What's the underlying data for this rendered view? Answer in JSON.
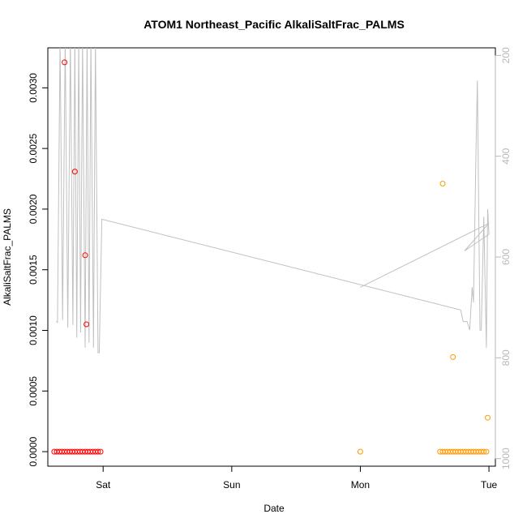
{
  "chart_data": {
    "type": "scatter",
    "title": "ATOM1 Northeast_Pacific AlkaliSaltFrac_PALMS",
    "xlabel": "Date",
    "ylabel": "AlkaliSaltFrac_PALMS",
    "x_ticks": [
      {
        "label": "Sat",
        "value": 1.0
      },
      {
        "label": "Sun",
        "value": 2.0
      },
      {
        "label": "Mon",
        "value": 3.0
      },
      {
        "label": "Tue",
        "value": 4.0
      }
    ],
    "xlim": [
      0.57,
      4.05
    ],
    "ylim": [
      -0.00012,
      0.00333
    ],
    "y_ticks": [
      "0.0000",
      "0.0005",
      "0.0010",
      "0.0015",
      "0.0020",
      "0.0025",
      "0.0030"
    ],
    "y_tick_values": [
      0.0,
      0.0005,
      0.001,
      0.0015,
      0.002,
      0.0025,
      0.003
    ],
    "y2_ticks": [
      "200",
      "400",
      "600",
      "800",
      "1000"
    ],
    "y2_tick_values": [
      200,
      400,
      600,
      800,
      1000
    ],
    "y2lim": [
      1015,
      185
    ],
    "colors": {
      "series_red": "#ff0000",
      "series_orange": "#ff9900",
      "altitude_line": "#c0c0c0",
      "right_axis": "#b8b8b8"
    },
    "series": [
      {
        "values_red": [
          [
            0.7,
            0.00321
          ],
          [
            0.78,
            0.00231
          ],
          [
            0.86,
            0.00162
          ],
          [
            0.87,
            0.00105
          ],
          [
            0.62,
            0.0
          ],
          [
            0.64,
            0.0
          ],
          [
            0.66,
            0.0
          ],
          [
            0.68,
            0.0
          ],
          [
            0.7,
            0.0
          ],
          [
            0.72,
            0.0
          ],
          [
            0.74,
            0.0
          ],
          [
            0.76,
            0.0
          ],
          [
            0.78,
            0.0
          ],
          [
            0.8,
            0.0
          ],
          [
            0.82,
            0.0
          ],
          [
            0.84,
            0.0
          ],
          [
            0.86,
            0.0
          ],
          [
            0.88,
            0.0
          ],
          [
            0.9,
            0.0
          ],
          [
            0.92,
            0.0
          ],
          [
            0.94,
            0.0
          ],
          [
            0.96,
            0.0
          ],
          [
            0.98,
            0.0
          ]
        ],
        "values_orange": [
          [
            3.0,
            0.0
          ],
          [
            3.64,
            0.00221
          ],
          [
            3.72,
            0.00078
          ],
          [
            3.99,
            0.00028
          ],
          [
            3.62,
            0.0
          ],
          [
            3.64,
            0.0
          ],
          [
            3.66,
            0.0
          ],
          [
            3.68,
            0.0
          ],
          [
            3.7,
            0.0
          ],
          [
            3.72,
            0.0
          ],
          [
            3.74,
            0.0
          ],
          [
            3.76,
            0.0
          ],
          [
            3.78,
            0.0
          ],
          [
            3.8,
            0.0
          ],
          [
            3.82,
            0.0
          ],
          [
            3.84,
            0.0
          ],
          [
            3.86,
            0.0
          ],
          [
            3.88,
            0.0
          ],
          [
            3.9,
            0.0
          ],
          [
            3.92,
            0.0
          ],
          [
            3.94,
            0.0
          ],
          [
            3.96,
            0.0
          ],
          [
            3.98,
            0.0
          ]
        ],
        "altitude": [
          [
            0.635,
            728
          ],
          [
            0.645,
            730
          ],
          [
            0.665,
            170
          ],
          [
            0.685,
            725
          ],
          [
            0.705,
            170
          ],
          [
            0.725,
            740
          ],
          [
            0.745,
            170
          ],
          [
            0.765,
            735
          ],
          [
            0.78,
            170
          ],
          [
            0.795,
            760
          ],
          [
            0.81,
            170
          ],
          [
            0.825,
            750
          ],
          [
            0.84,
            170
          ],
          [
            0.86,
            780
          ],
          [
            0.875,
            170
          ],
          [
            0.89,
            770
          ],
          [
            0.905,
            170
          ],
          [
            0.925,
            780
          ],
          [
            0.94,
            170
          ],
          [
            0.96,
            790
          ],
          [
            0.97,
            790
          ],
          [
            0.99,
            525
          ],
          [
            3.78,
            705
          ],
          [
            3.8,
            728
          ],
          [
            3.83,
            728
          ],
          [
            3.85,
            745
          ],
          [
            3.87,
            660
          ],
          [
            3.88,
            690
          ],
          [
            3.9,
            380
          ],
          [
            3.91,
            250
          ],
          [
            3.93,
            745
          ],
          [
            3.94,
            745
          ],
          [
            3.96,
            520
          ],
          [
            3.98,
            780
          ],
          [
            3.99,
            505
          ],
          [
            4.0,
            555
          ],
          [
            3.81,
            588
          ],
          [
            4.0,
            533
          ],
          [
            3.0,
            660
          ]
        ]
      }
    ]
  }
}
